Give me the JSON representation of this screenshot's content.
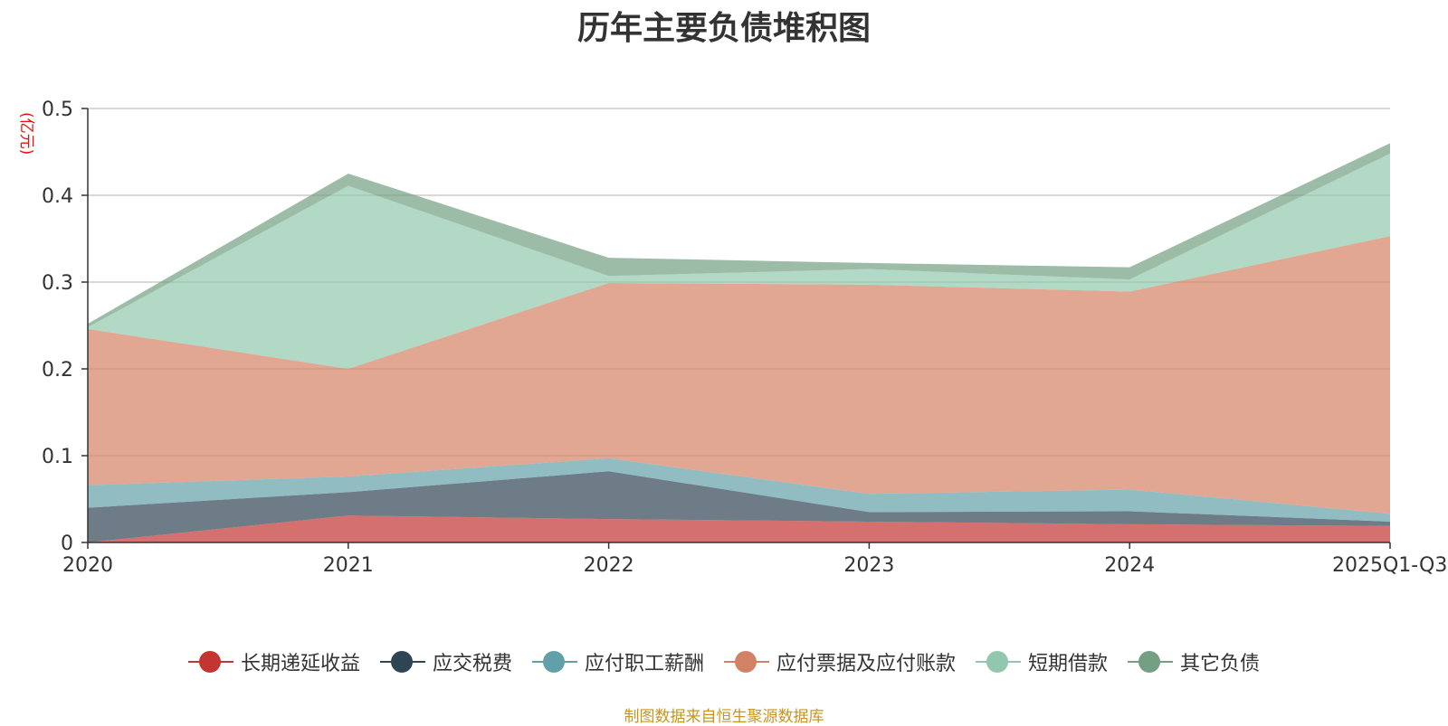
{
  "chart_data": {
    "type": "area",
    "stacked": true,
    "title": "历年主要负债堆积图",
    "ylabel": "(亿元)",
    "xlabel": "",
    "categories": [
      "2020",
      "2021",
      "2022",
      "2023",
      "2024",
      "2025Q1-Q3"
    ],
    "ylim": [
      0,
      0.5
    ],
    "yticks": [
      "0",
      "0.1",
      "0.2",
      "0.3",
      "0.4",
      "0.5"
    ],
    "grid": true,
    "legend_position": "bottom",
    "series": [
      {
        "name": "长期递延收益",
        "color": "#c23531",
        "values": [
          0.0,
          0.031,
          0.027,
          0.024,
          0.021,
          0.019
        ]
      },
      {
        "name": "应交税费",
        "color": "#2f4554",
        "values": [
          0.04,
          0.027,
          0.055,
          0.011,
          0.015,
          0.005
        ]
      },
      {
        "name": "应付职工薪酬",
        "color": "#61a0a8",
        "values": [
          0.026,
          0.018,
          0.015,
          0.021,
          0.025,
          0.009
        ]
      },
      {
        "name": "应付票据及应付账款",
        "color": "#d48265",
        "values": [
          0.18,
          0.124,
          0.202,
          0.241,
          0.228,
          0.32
        ]
      },
      {
        "name": "短期借款",
        "color": "#91c7ae",
        "values": [
          0.002,
          0.211,
          0.008,
          0.018,
          0.014,
          0.095
        ]
      },
      {
        "name": "其它负债",
        "color": "#749f83",
        "values": [
          0.004,
          0.014,
          0.021,
          0.007,
          0.014,
          0.012
        ]
      }
    ]
  },
  "source": "制图数据来自恒生聚源数据库"
}
